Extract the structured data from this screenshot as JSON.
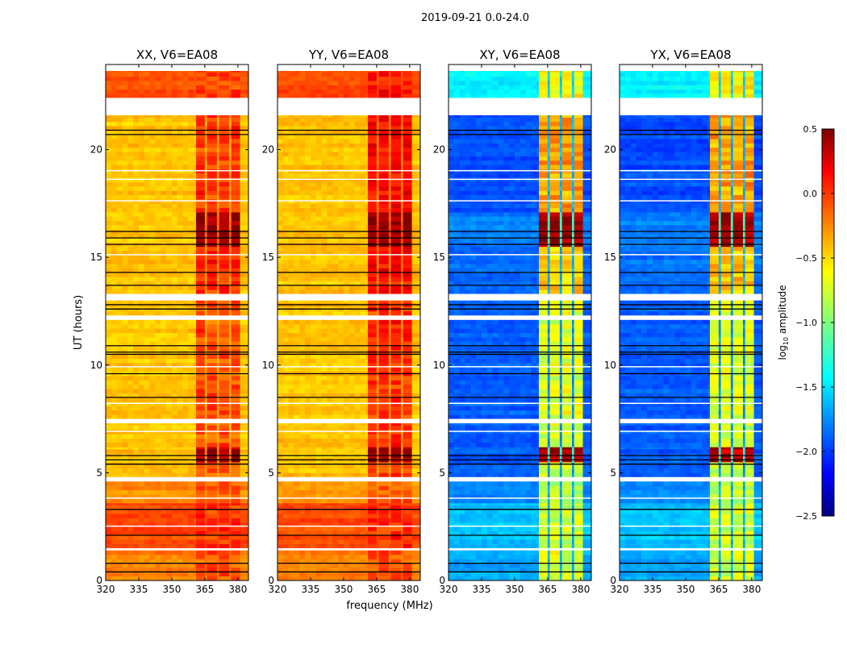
{
  "suptitle": "2019-09-21 0.0-24.0",
  "xlabel": "frequency (MHz)",
  "ylabel": "UT (hours)",
  "colorbar": {
    "label_prefix": "log",
    "label_sub": "10",
    "label_suffix": " amplitude",
    "range": [
      -2.5,
      0.5
    ],
    "ticks": [
      "0.5",
      "0.0",
      "−0.5",
      "−1.0",
      "−1.5",
      "−2.0",
      "−2.5"
    ],
    "tick_values": [
      0.5,
      0.0,
      -0.5,
      -1.0,
      -1.5,
      -2.0,
      -2.5
    ],
    "colormap": "jet"
  },
  "chart_data": {
    "type": "heatmap",
    "xlim": [
      320,
      384.8
    ],
    "ylim": [
      0,
      23.95
    ],
    "xticks": [
      320,
      335,
      350,
      365,
      380
    ],
    "xtick_labels": [
      "320",
      "335",
      "350",
      "365",
      "380"
    ],
    "yticks": [
      0,
      5,
      10,
      15,
      20
    ],
    "ytick_labels": [
      "0",
      "5",
      "10",
      "15",
      "20"
    ],
    "rfi_bands_mhz": [
      [
        361,
        365
      ],
      [
        366,
        370.5
      ],
      [
        371.5,
        376
      ],
      [
        377,
        381
      ]
    ],
    "time_segments_hours": [
      [
        0,
        1.4
      ],
      [
        1.5,
        3.6
      ],
      [
        3.6,
        4.6
      ],
      [
        4.8,
        5.5
      ],
      [
        5.5,
        6.2
      ],
      [
        6.2,
        7.3
      ],
      [
        7.5,
        10.5
      ],
      [
        10.5,
        12.1
      ],
      [
        12.3,
        13.0
      ],
      [
        13.3,
        15.5
      ],
      [
        15.5,
        17.1
      ],
      [
        17.1,
        21.6
      ],
      [
        22.4,
        23.65
      ]
    ],
    "flagged_hours": [
      [
        21.6,
        22.4
      ],
      [
        13.0,
        13.3
      ],
      [
        12.1,
        12.3
      ],
      [
        4.6,
        4.8
      ],
      [
        7.3,
        7.5
      ],
      [
        1.4,
        1.5
      ],
      [
        23.65,
        23.95
      ],
      [
        18.6,
        18.65
      ],
      [
        19.0,
        19.05
      ],
      [
        17.6,
        17.65
      ],
      [
        15.1,
        15.15
      ],
      [
        9.9,
        9.95
      ],
      [
        8.2,
        8.25
      ],
      [
        6.9,
        6.95
      ],
      [
        3.8,
        3.85
      ],
      [
        2.5,
        2.55
      ]
    ],
    "black_lines_hours": [
      20.9,
      20.7,
      16.2,
      15.9,
      15.6,
      14.3,
      13.7,
      12.8,
      12.6,
      10.9,
      10.6,
      10.5,
      9.6,
      8.5,
      5.8,
      5.6,
      5.4,
      3.3,
      2.1,
      0.8,
      0.4
    ],
    "panels": [
      {
        "title": "XX, V6=EA08",
        "base_levels": [
          -0.25,
          -0.1,
          -0.3,
          -0.45,
          -0.45,
          -0.45,
          -0.45,
          -0.45,
          -0.45,
          -0.45,
          -0.45,
          -0.45,
          -0.1
        ],
        "band_levels": [
          -0.1,
          -0.05,
          -0.15,
          -0.15,
          0.4,
          -0.1,
          -0.1,
          -0.1,
          -0.1,
          0.0,
          0.45,
          -0.05,
          -0.05
        ],
        "gap_levels": [
          -0.2,
          -0.1,
          -0.25,
          -0.35,
          -0.3,
          -0.35,
          -0.35,
          -0.35,
          -0.35,
          -0.3,
          -0.2,
          -0.35,
          -0.1
        ]
      },
      {
        "title": "YY, V6=EA08",
        "base_levels": [
          -0.25,
          -0.1,
          -0.3,
          -0.45,
          -0.45,
          -0.45,
          -0.45,
          -0.45,
          -0.45,
          -0.45,
          -0.45,
          -0.45,
          -0.1
        ],
        "band_levels": [
          -0.1,
          0.0,
          -0.1,
          -0.1,
          0.45,
          0.0,
          0.0,
          0.0,
          0.0,
          0.1,
          0.45,
          0.1,
          0.05
        ],
        "gap_levels": [
          -0.2,
          -0.1,
          -0.25,
          -0.35,
          -0.2,
          -0.3,
          -0.3,
          -0.3,
          -0.3,
          -0.25,
          -0.1,
          -0.25,
          -0.1
        ]
      },
      {
        "title": "XY, V6=EA08",
        "base_levels": [
          -1.65,
          -1.55,
          -1.7,
          -1.85,
          -1.85,
          -1.85,
          -1.85,
          -1.85,
          -1.85,
          -1.8,
          -1.75,
          -1.9,
          -1.4
        ],
        "band_levels": [
          -0.75,
          -0.75,
          -0.8,
          -0.8,
          0.35,
          -0.75,
          -0.7,
          -0.7,
          -0.7,
          -0.45,
          0.4,
          -0.35,
          -0.6
        ],
        "gap_levels": [
          -1.6,
          -1.6,
          -1.6,
          -1.7,
          -1.3,
          -1.7,
          -1.7,
          -1.7,
          -1.7,
          -1.6,
          -1.2,
          -1.6,
          -1.5
        ]
      },
      {
        "title": "YX, V6=EA08",
        "base_levels": [
          -1.65,
          -1.55,
          -1.7,
          -1.85,
          -1.85,
          -1.85,
          -1.85,
          -1.85,
          -1.85,
          -1.8,
          -1.75,
          -1.9,
          -1.4
        ],
        "band_levels": [
          -0.75,
          -0.75,
          -0.8,
          -0.8,
          0.35,
          -0.75,
          -0.7,
          -0.7,
          -0.7,
          -0.45,
          0.4,
          -0.35,
          -0.6
        ],
        "gap_levels": [
          -1.6,
          -1.6,
          -1.6,
          -1.7,
          -1.3,
          -1.7,
          -1.7,
          -1.7,
          -1.7,
          -1.6,
          -1.2,
          -1.6,
          -1.5
        ]
      }
    ]
  }
}
